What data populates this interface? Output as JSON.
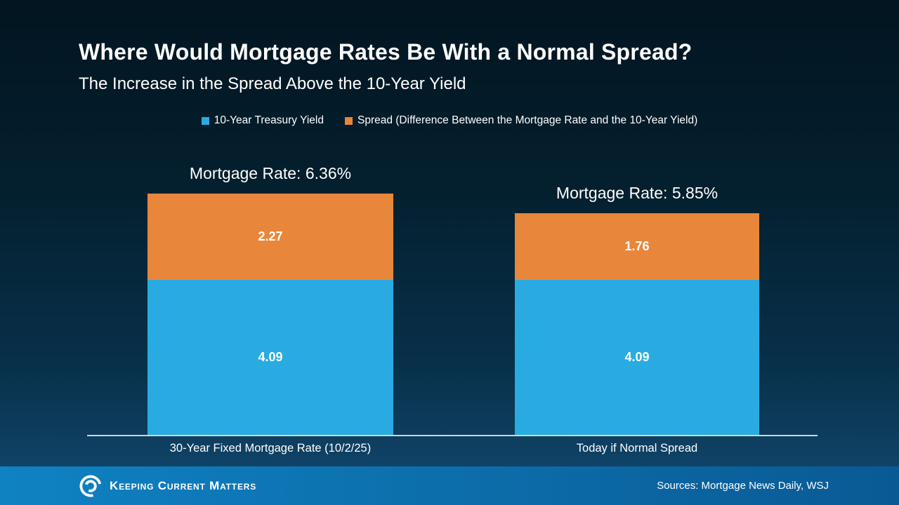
{
  "header": {
    "title": "Where Would Mortgage Rates Be With a Normal Spread?",
    "subtitle": "The Increase in the Spread Above the 10-Year Yield"
  },
  "legend": {
    "items": [
      {
        "label": "10-Year Treasury Yield",
        "color": "#29ABE2"
      },
      {
        "label": "Spread (Difference Between the Mortgage Rate and the 10-Year Yield)",
        "color": "#E8873B"
      }
    ]
  },
  "chart_data": {
    "type": "bar",
    "stacked": true,
    "categories": [
      "30-Year Fixed Mortgage Rate (10/2/25)",
      "Today if Normal Spread"
    ],
    "series": [
      {
        "name": "10-Year Treasury Yield",
        "color": "#29ABE2",
        "values": [
          4.09,
          4.09
        ]
      },
      {
        "name": "Spread (Difference Between the Mortgage Rate and the 10-Year Yield)",
        "color": "#E8873B",
        "values": [
          2.27,
          1.76
        ]
      }
    ],
    "bar_totals": [
      6.36,
      5.85
    ],
    "bar_total_labels": [
      "Mortgage Rate: 6.36%",
      "Mortgage Rate: 5.85%"
    ],
    "title": "Where Would Mortgage Rates Be With a Normal Spread?",
    "xlabel": "",
    "ylabel": "",
    "ylim": [
      0,
      6.36
    ],
    "grid": false,
    "legend_position": "top",
    "value_labels_shown": true
  },
  "footer": {
    "brand": "Keeping Current Matters",
    "sources": "Sources: Mortgage News Daily, WSJ"
  }
}
